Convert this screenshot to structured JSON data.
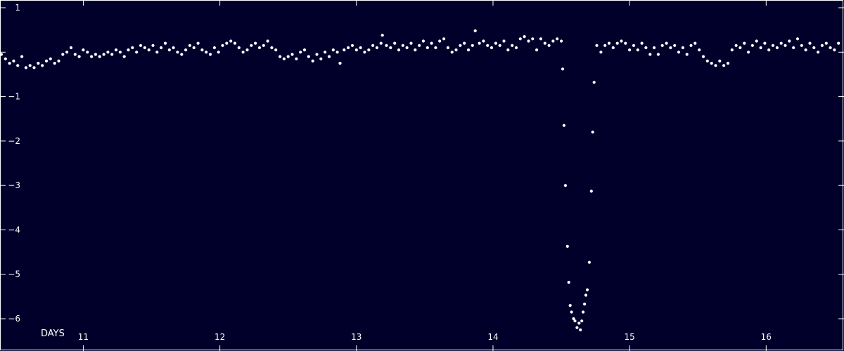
{
  "chart_data": {
    "type": "scatter",
    "title": "",
    "xlabel": "DAYS",
    "ylabel": "",
    "xlim": [
      10.39,
      16.57
    ],
    "ylim": [
      -6.9,
      1.0
    ],
    "xticks": [
      11,
      12,
      13,
      14,
      15,
      16
    ],
    "xtick_labels": [
      "11",
      "12",
      "13",
      "14",
      "15",
      "16"
    ],
    "yticks": [
      1,
      0,
      -1,
      -2,
      -3,
      -4,
      -5,
      -6
    ],
    "ytick_labels": [
      "1",
      "",
      "−1",
      "−2",
      "−3",
      "−4",
      "−5",
      "−6"
    ],
    "grid": false,
    "colors": {
      "background": "#00002b",
      "points": "#ffffff",
      "axes": "#ffffff"
    },
    "series": [
      {
        "points": [
          [
            10.4,
            -0.05
          ],
          [
            10.43,
            -0.15
          ],
          [
            10.46,
            -0.25
          ],
          [
            10.49,
            -0.2
          ],
          [
            10.52,
            -0.3
          ],
          [
            10.55,
            -0.1
          ],
          [
            10.58,
            -0.35
          ],
          [
            10.61,
            -0.3
          ],
          [
            10.64,
            -0.35
          ],
          [
            10.67,
            -0.25
          ],
          [
            10.7,
            -0.3
          ],
          [
            10.73,
            -0.2
          ],
          [
            10.76,
            -0.15
          ],
          [
            10.79,
            -0.25
          ],
          [
            10.82,
            -0.2
          ],
          [
            10.85,
            -0.05
          ],
          [
            10.88,
            0.0
          ],
          [
            10.91,
            0.1
          ],
          [
            10.94,
            -0.05
          ],
          [
            10.97,
            -0.1
          ],
          [
            11.0,
            0.05
          ],
          [
            11.03,
            0.0
          ],
          [
            11.06,
            -0.1
          ],
          [
            11.09,
            -0.05
          ],
          [
            11.12,
            -0.1
          ],
          [
            11.15,
            -0.05
          ],
          [
            11.18,
            0.0
          ],
          [
            11.21,
            -0.05
          ],
          [
            11.24,
            0.05
          ],
          [
            11.27,
            0.0
          ],
          [
            11.3,
            -0.1
          ],
          [
            11.33,
            0.05
          ],
          [
            11.36,
            0.1
          ],
          [
            11.39,
            0.0
          ],
          [
            11.42,
            0.15
          ],
          [
            11.45,
            0.1
          ],
          [
            11.48,
            0.05
          ],
          [
            11.51,
            0.15
          ],
          [
            11.54,
            0.0
          ],
          [
            11.57,
            0.1
          ],
          [
            11.6,
            0.2
          ],
          [
            11.63,
            0.05
          ],
          [
            11.66,
            0.1
          ],
          [
            11.69,
            0.0
          ],
          [
            11.72,
            -0.05
          ],
          [
            11.75,
            0.05
          ],
          [
            11.78,
            0.15
          ],
          [
            11.81,
            0.1
          ],
          [
            11.84,
            0.2
          ],
          [
            11.87,
            0.05
          ],
          [
            11.9,
            0.0
          ],
          [
            11.93,
            -0.05
          ],
          [
            11.96,
            0.1
          ],
          [
            11.99,
            0.0
          ],
          [
            12.02,
            0.15
          ],
          [
            12.05,
            0.2
          ],
          [
            12.08,
            0.25
          ],
          [
            12.11,
            0.2
          ],
          [
            12.14,
            0.1
          ],
          [
            12.17,
            0.0
          ],
          [
            12.2,
            0.05
          ],
          [
            12.23,
            0.15
          ],
          [
            12.26,
            0.2
          ],
          [
            12.29,
            0.1
          ],
          [
            12.32,
            0.15
          ],
          [
            12.35,
            0.25
          ],
          [
            12.38,
            0.1
          ],
          [
            12.41,
            0.05
          ],
          [
            12.44,
            -0.1
          ],
          [
            12.47,
            -0.15
          ],
          [
            12.5,
            -0.1
          ],
          [
            12.53,
            -0.05
          ],
          [
            12.56,
            -0.15
          ],
          [
            12.59,
            0.0
          ],
          [
            12.62,
            0.05
          ],
          [
            12.65,
            -0.1
          ],
          [
            12.68,
            -0.2
          ],
          [
            12.71,
            -0.05
          ],
          [
            12.74,
            -0.15
          ],
          [
            12.77,
            0.0
          ],
          [
            12.8,
            -0.1
          ],
          [
            12.83,
            0.05
          ],
          [
            12.86,
            0.0
          ],
          [
            12.88,
            -0.25
          ],
          [
            12.91,
            0.05
          ],
          [
            12.94,
            0.1
          ],
          [
            12.97,
            0.15
          ],
          [
            13.0,
            0.05
          ],
          [
            13.03,
            0.1
          ],
          [
            13.06,
            0.0
          ],
          [
            13.09,
            0.05
          ],
          [
            13.12,
            0.15
          ],
          [
            13.15,
            0.1
          ],
          [
            13.18,
            0.2
          ],
          [
            13.19,
            0.38
          ],
          [
            13.22,
            0.15
          ],
          [
            13.25,
            0.1
          ],
          [
            13.28,
            0.2
          ],
          [
            13.31,
            0.05
          ],
          [
            13.34,
            0.15
          ],
          [
            13.37,
            0.1
          ],
          [
            13.4,
            0.2
          ],
          [
            13.43,
            0.05
          ],
          [
            13.46,
            0.15
          ],
          [
            13.49,
            0.25
          ],
          [
            13.52,
            0.1
          ],
          [
            13.55,
            0.2
          ],
          [
            13.58,
            0.1
          ],
          [
            13.61,
            0.25
          ],
          [
            13.64,
            0.3
          ],
          [
            13.67,
            0.1
          ],
          [
            13.7,
            0.0
          ],
          [
            13.73,
            0.05
          ],
          [
            13.76,
            0.15
          ],
          [
            13.79,
            0.2
          ],
          [
            13.82,
            0.05
          ],
          [
            13.85,
            0.15
          ],
          [
            13.87,
            0.48
          ],
          [
            13.9,
            0.2
          ],
          [
            13.93,
            0.25
          ],
          [
            13.96,
            0.15
          ],
          [
            13.99,
            0.1
          ],
          [
            14.02,
            0.2
          ],
          [
            14.05,
            0.15
          ],
          [
            14.08,
            0.25
          ],
          [
            14.11,
            0.05
          ],
          [
            14.14,
            0.15
          ],
          [
            14.17,
            0.1
          ],
          [
            14.2,
            0.3
          ],
          [
            14.23,
            0.35
          ],
          [
            14.26,
            0.25
          ],
          [
            14.29,
            0.3
          ],
          [
            14.32,
            0.05
          ],
          [
            14.35,
            0.3
          ],
          [
            14.38,
            0.2
          ],
          [
            14.41,
            0.15
          ],
          [
            14.44,
            0.25
          ],
          [
            14.47,
            0.3
          ],
          [
            14.5,
            0.25
          ],
          [
            14.51,
            -0.38
          ],
          [
            14.52,
            -1.65
          ],
          [
            14.53,
            -3.0
          ],
          [
            14.545,
            -4.37
          ],
          [
            14.555,
            -5.18
          ],
          [
            14.565,
            -5.7
          ],
          [
            14.575,
            -5.85
          ],
          [
            14.59,
            -6.0
          ],
          [
            14.6,
            -6.05
          ],
          [
            14.615,
            -6.2
          ],
          [
            14.63,
            -6.1
          ],
          [
            14.64,
            -6.25
          ],
          [
            14.65,
            -6.05
          ],
          [
            14.66,
            -5.85
          ],
          [
            14.67,
            -5.67
          ],
          [
            14.68,
            -5.47
          ],
          [
            14.69,
            -5.35
          ],
          [
            14.705,
            -4.73
          ],
          [
            14.72,
            -3.13
          ],
          [
            14.73,
            -1.8
          ],
          [
            14.74,
            -0.68
          ],
          [
            14.76,
            0.15
          ],
          [
            14.79,
            0.0
          ],
          [
            14.82,
            0.15
          ],
          [
            14.85,
            0.2
          ],
          [
            14.88,
            0.1
          ],
          [
            14.91,
            0.2
          ],
          [
            14.94,
            0.25
          ],
          [
            14.97,
            0.2
          ],
          [
            15.0,
            0.05
          ],
          [
            15.03,
            0.15
          ],
          [
            15.06,
            0.05
          ],
          [
            15.09,
            0.2
          ],
          [
            15.12,
            0.1
          ],
          [
            15.15,
            -0.05
          ],
          [
            15.18,
            0.1
          ],
          [
            15.21,
            -0.05
          ],
          [
            15.24,
            0.15
          ],
          [
            15.27,
            0.2
          ],
          [
            15.3,
            0.1
          ],
          [
            15.33,
            0.15
          ],
          [
            15.36,
            0.0
          ],
          [
            15.39,
            0.1
          ],
          [
            15.42,
            -0.05
          ],
          [
            15.45,
            0.15
          ],
          [
            15.48,
            0.2
          ],
          [
            15.51,
            0.05
          ],
          [
            15.54,
            -0.1
          ],
          [
            15.57,
            -0.2
          ],
          [
            15.6,
            -0.25
          ],
          [
            15.63,
            -0.3
          ],
          [
            15.66,
            -0.2
          ],
          [
            15.69,
            -0.3
          ],
          [
            15.72,
            -0.25
          ],
          [
            15.75,
            0.05
          ],
          [
            15.78,
            0.15
          ],
          [
            15.81,
            0.1
          ],
          [
            15.84,
            0.2
          ],
          [
            15.87,
            0.0
          ],
          [
            15.9,
            0.15
          ],
          [
            15.93,
            0.25
          ],
          [
            15.96,
            0.1
          ],
          [
            15.99,
            0.2
          ],
          [
            16.02,
            0.05
          ],
          [
            16.05,
            0.15
          ],
          [
            16.08,
            0.1
          ],
          [
            16.11,
            0.2
          ],
          [
            16.14,
            0.15
          ],
          [
            16.17,
            0.25
          ],
          [
            16.2,
            0.1
          ],
          [
            16.23,
            0.3
          ],
          [
            16.26,
            0.15
          ],
          [
            16.29,
            0.05
          ],
          [
            16.32,
            0.2
          ],
          [
            16.35,
            0.1
          ],
          [
            16.38,
            0.0
          ],
          [
            16.41,
            0.15
          ],
          [
            16.44,
            0.2
          ],
          [
            16.47,
            0.1
          ],
          [
            16.5,
            0.05
          ],
          [
            16.53,
            0.2
          ]
        ]
      }
    ]
  }
}
